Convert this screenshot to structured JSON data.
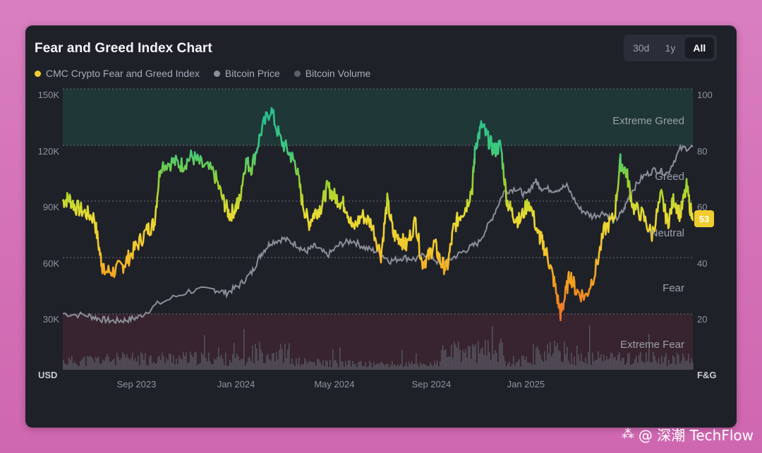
{
  "title": "Fear and Greed Index Chart",
  "range_buttons": [
    {
      "label": "30d",
      "active": false
    },
    {
      "label": "1y",
      "active": false
    },
    {
      "label": "All",
      "active": true
    }
  ],
  "legend": [
    {
      "label": "CMC Crypto Fear and Greed Index",
      "color": "#f0cd2e"
    },
    {
      "label": "Bitcoin Price",
      "color": "#8b8f9a"
    },
    {
      "label": "Bitcoin Volume",
      "color": "#5d616c"
    }
  ],
  "watermark": {
    "icon": "paw-icon",
    "text": "@ 深潮 TechFlow"
  },
  "chart_data": {
    "type": "line",
    "left_axis": {
      "label": "USD",
      "ticks": [
        "30K",
        "60K",
        "90K",
        "120K",
        "150K"
      ],
      "range": [
        0,
        150000
      ]
    },
    "right_axis": {
      "label": "F&G",
      "ticks": [
        "20",
        "40",
        "60",
        "80",
        "100"
      ],
      "range": [
        0,
        100
      ]
    },
    "x_ticks": [
      {
        "label": "Sep 2023",
        "t": 0.117
      },
      {
        "label": "Jan 2024",
        "t": 0.275
      },
      {
        "label": "May 2024",
        "t": 0.431
      },
      {
        "label": "Sep 2024",
        "t": 0.585
      },
      {
        "label": "Jan 2025",
        "t": 0.735
      }
    ],
    "zones": [
      {
        "label": "Extreme Greed",
        "from": 80,
        "to": 100,
        "color": "#1f3a37"
      },
      {
        "label": "Greed",
        "from": 60,
        "to": 80
      },
      {
        "label": "Neutral",
        "from": 40,
        "to": 60
      },
      {
        "label": "Fear",
        "from": 20,
        "to": 40
      },
      {
        "label": "Extreme Fear",
        "from": 0,
        "to": 20,
        "color": "#3a2530"
      }
    ],
    "current_value": "53",
    "series": [
      {
        "name": "CMC Crypto Fear and Greed Index",
        "t": [
          0,
          0.01,
          0.02,
          0.035,
          0.05,
          0.06,
          0.065,
          0.08,
          0.095,
          0.105,
          0.12,
          0.135,
          0.145,
          0.155,
          0.175,
          0.19,
          0.205,
          0.22,
          0.24,
          0.255,
          0.265,
          0.275,
          0.28,
          0.29,
          0.3,
          0.315,
          0.33,
          0.345,
          0.36,
          0.37,
          0.38,
          0.39,
          0.4,
          0.41,
          0.42,
          0.43,
          0.44,
          0.45,
          0.46,
          0.475,
          0.49,
          0.505,
          0.515,
          0.525,
          0.535,
          0.545,
          0.56,
          0.57,
          0.58,
          0.59,
          0.6,
          0.61,
          0.62,
          0.63,
          0.64,
          0.65,
          0.655,
          0.665,
          0.675,
          0.685,
          0.695,
          0.705,
          0.715,
          0.725,
          0.74,
          0.755,
          0.76,
          0.77,
          0.78,
          0.79,
          0.795,
          0.805,
          0.815,
          0.83,
          0.845,
          0.86,
          0.875,
          0.885,
          0.895,
          0.905,
          0.92,
          0.935,
          0.95,
          0.96,
          0.97,
          0.98,
          0.99,
          1.0
        ],
        "values": [
          60,
          61,
          58,
          56,
          54,
          40,
          35,
          35,
          37,
          40,
          45,
          50,
          52,
          73,
          74,
          73,
          76,
          73,
          70,
          60,
          55,
          58,
          60,
          74,
          72,
          85,
          93,
          82,
          77,
          73,
          60,
          52,
          56,
          58,
          65,
          62,
          60,
          58,
          50,
          55,
          52,
          41,
          60,
          48,
          47,
          44,
          53,
          38,
          40,
          45,
          38,
          36,
          50,
          55,
          58,
          65,
          80,
          87,
          82,
          78,
          80,
          60,
          55,
          53,
          60,
          48,
          46,
          40,
          31,
          20,
          24,
          34,
          28,
          26,
          35,
          50,
          54,
          74,
          70,
          58,
          55,
          48,
          62,
          52,
          61,
          55,
          65,
          53
        ]
      },
      {
        "name": "Bitcoin Price",
        "t": [
          0,
          0.04,
          0.06,
          0.08,
          0.1,
          0.12,
          0.15,
          0.2,
          0.24,
          0.26,
          0.28,
          0.3,
          0.315,
          0.33,
          0.35,
          0.37,
          0.385,
          0.4,
          0.42,
          0.44,
          0.46,
          0.48,
          0.5,
          0.52,
          0.54,
          0.56,
          0.58,
          0.6,
          0.62,
          0.64,
          0.66,
          0.68,
          0.7,
          0.72,
          0.735,
          0.75,
          0.76,
          0.78,
          0.8,
          0.82,
          0.84,
          0.86,
          0.875,
          0.89,
          0.9,
          0.92,
          0.94,
          0.96,
          0.98,
          1.0
        ],
        "values": [
          30000,
          29000,
          27000,
          26000,
          26500,
          28000,
          35000,
          42000,
          43000,
          41000,
          45000,
          52000,
          62000,
          68000,
          70000,
          67000,
          63000,
          66000,
          61000,
          67000,
          69000,
          65000,
          63000,
          58000,
          60000,
          59000,
          62000,
          56000,
          60000,
          64000,
          68000,
          80000,
          95000,
          97000,
          93000,
          101000,
          97000,
          96000,
          98000,
          86000,
          82000,
          84000,
          79000,
          85000,
          94000,
          103000,
          107000,
          105000,
          118000,
          119000
        ]
      }
    ]
  }
}
